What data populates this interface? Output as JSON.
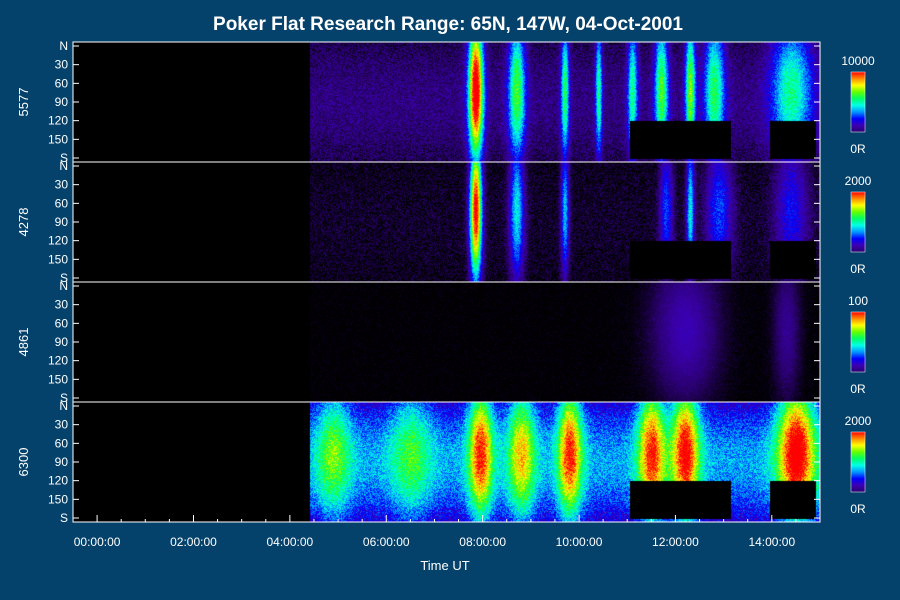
{
  "chart_data": {
    "type": "heatmap",
    "title": "Poker Flat Research Range: 65N, 147W, 04-Oct-2001",
    "xlabel": "Time UT",
    "xlim_hours": [
      -0.5,
      15
    ],
    "x_ticks": [
      {
        "value": 0,
        "label": "00:00:00"
      },
      {
        "value": 2,
        "label": "02:00:00"
      },
      {
        "value": 4,
        "label": "04:00:00"
      },
      {
        "value": 6,
        "label": "06:00:00"
      },
      {
        "value": 8,
        "label": "08:00:00"
      },
      {
        "value": 10,
        "label": "10:00:00"
      },
      {
        "value": 12,
        "label": "12:00:00"
      },
      {
        "value": 14,
        "label": "14:00:00"
      }
    ],
    "y_ticks": [
      {
        "value": 0,
        "label": "N"
      },
      {
        "value": 30,
        "label": "30"
      },
      {
        "value": 60,
        "label": "60"
      },
      {
        "value": 90,
        "label": "90"
      },
      {
        "value": 120,
        "label": "120"
      },
      {
        "value": 150,
        "label": "150"
      },
      {
        "value": 180,
        "label": "S"
      }
    ],
    "colormap": [
      "#000000",
      "#2a006e",
      "#3c00b4",
      "#0000ff",
      "#0096ff",
      "#00ffe6",
      "#00ff64",
      "#64ff00",
      "#ffff00",
      "#ff8c00",
      "#ff0000"
    ],
    "panels": [
      {
        "label": "5577",
        "cbar_max": "10000",
        "cbar_min": "0R",
        "data_start_hour": 4.4,
        "floor": 0.13,
        "noise": 0.14,
        "events": [
          {
            "t": 7.85,
            "w": 0.22,
            "amp": 1.0
          },
          {
            "t": 8.7,
            "w": 0.25,
            "amp": 0.55
          },
          {
            "t": 9.7,
            "w": 0.12,
            "amp": 0.5
          },
          {
            "t": 10.4,
            "w": 0.1,
            "amp": 0.45
          },
          {
            "t": 11.1,
            "w": 0.15,
            "amp": 0.45
          },
          {
            "t": 11.7,
            "w": 0.2,
            "amp": 0.55
          },
          {
            "t": 12.3,
            "w": 0.15,
            "amp": 0.6
          },
          {
            "t": 12.8,
            "w": 0.3,
            "amp": 0.5
          },
          {
            "t": 14.4,
            "w": 0.6,
            "amp": 0.45
          }
        ],
        "masks": [
          [
            11.05,
            13.15,
            120,
            180
          ],
          [
            13.95,
            14.9,
            120,
            180
          ]
        ]
      },
      {
        "label": "4278",
        "cbar_max": "2000",
        "cbar_min": "0R",
        "data_start_hour": 4.4,
        "floor": 0.04,
        "noise": 0.12,
        "events": [
          {
            "t": 7.85,
            "w": 0.18,
            "amp": 1.0
          },
          {
            "t": 8.7,
            "w": 0.22,
            "amp": 0.45
          },
          {
            "t": 9.7,
            "w": 0.12,
            "amp": 0.4
          },
          {
            "t": 11.8,
            "w": 0.2,
            "amp": 0.3
          },
          {
            "t": 12.3,
            "w": 0.12,
            "amp": 0.45
          },
          {
            "t": 12.9,
            "w": 0.4,
            "amp": 0.3
          },
          {
            "t": 14.4,
            "w": 0.5,
            "amp": 0.25
          }
        ],
        "masks": [
          [
            11.05,
            13.15,
            120,
            180
          ],
          [
            13.95,
            14.9,
            120,
            180
          ]
        ]
      },
      {
        "label": "4861",
        "cbar_max": "100",
        "cbar_min": "0R",
        "data_start_hour": 4.4,
        "floor": 0.0,
        "noise": 0.05,
        "events": [
          {
            "t": 12.2,
            "w": 1.0,
            "amp": 0.2
          },
          {
            "t": 14.3,
            "w": 0.4,
            "amp": 0.15
          }
        ],
        "masks": []
      },
      {
        "label": "6300",
        "cbar_max": "2000",
        "cbar_min": "0R",
        "data_start_hour": 4.4,
        "floor": 0.42,
        "noise": 0.18,
        "events": [
          {
            "t": 4.9,
            "w": 0.5,
            "amp": 0.3
          },
          {
            "t": 6.5,
            "w": 0.6,
            "amp": 0.25
          },
          {
            "t": 7.95,
            "w": 0.35,
            "amp": 0.6
          },
          {
            "t": 8.8,
            "w": 0.4,
            "amp": 0.45
          },
          {
            "t": 9.8,
            "w": 0.35,
            "amp": 0.6
          },
          {
            "t": 11.5,
            "w": 0.4,
            "amp": 0.6
          },
          {
            "t": 12.2,
            "w": 0.4,
            "amp": 0.65
          },
          {
            "t": 14.5,
            "w": 0.55,
            "amp": 0.7
          }
        ],
        "masks": [
          [
            11.05,
            13.15,
            120,
            180
          ],
          [
            13.95,
            14.9,
            120,
            180
          ]
        ]
      }
    ]
  }
}
